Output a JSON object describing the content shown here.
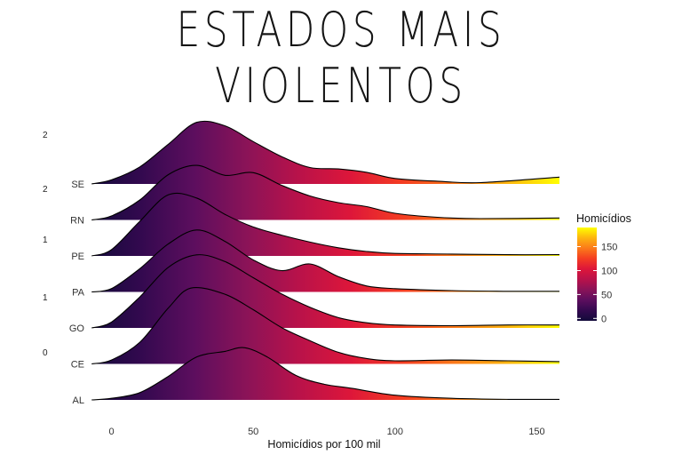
{
  "title": "ESTADOS MAIS VIOLENTOS",
  "colors": {
    "ramp": [
      "#0d0887",
      "#1b0c41",
      "#4a0c6b",
      "#781c6d",
      "#a52c60",
      "#cf4446",
      "#ed6925",
      "#fb9b06",
      "#f7d13d",
      "#fcffa4"
    ],
    "fill_ramp": [
      "#120a3a",
      "#33094f",
      "#5c0e5e",
      "#8a1358",
      "#b8124a",
      "#dd163a",
      "#f43d22",
      "#fb7a1a",
      "#fdb40f",
      "#ffff00"
    ]
  },
  "chart_data": {
    "type": "ridgeline",
    "title": "ESTADOS MAIS VIOLENTOS",
    "xlabel": "Homicídios por 100 mil",
    "ylabel": "",
    "xlim": [
      -8,
      158
    ],
    "x_ticks": [
      0,
      50,
      100,
      150
    ],
    "edge_ticks": [
      "2",
      "2",
      "1",
      "1",
      "0"
    ],
    "categories": [
      "AL",
      "CE",
      "GO",
      "PA",
      "PE",
      "RN",
      "SE"
    ],
    "grid": false,
    "legend": {
      "title": "Homicídios",
      "position": "right",
      "ticks": [
        0,
        50,
        100,
        150
      ],
      "range": [
        -5,
        190
      ]
    },
    "series": [
      {
        "name": "AL",
        "peak": 1.45,
        "x": [
          -7,
          0,
          10,
          20,
          30,
          40,
          47,
          55,
          65,
          75,
          85,
          100,
          120,
          140,
          158
        ],
        "density": [
          0.0,
          0.03,
          0.14,
          0.45,
          0.82,
          0.93,
          1.0,
          0.82,
          0.47,
          0.3,
          0.22,
          0.09,
          0.03,
          0.01,
          0.01
        ]
      },
      {
        "name": "CE",
        "peak": 2.15,
        "x": [
          -7,
          0,
          10,
          20,
          28,
          40,
          50,
          60,
          70,
          80,
          90,
          100,
          120,
          140,
          158
        ],
        "density": [
          0.0,
          0.05,
          0.28,
          0.72,
          0.98,
          0.9,
          0.7,
          0.47,
          0.3,
          0.15,
          0.07,
          0.04,
          0.05,
          0.04,
          0.03
        ]
      },
      {
        "name": "GO",
        "peak": 2.05,
        "x": [
          -7,
          0,
          10,
          20,
          30,
          40,
          50,
          60,
          70,
          80,
          90,
          100,
          120,
          140,
          158
        ],
        "density": [
          0.0,
          0.08,
          0.42,
          0.82,
          0.99,
          0.9,
          0.68,
          0.46,
          0.28,
          0.14,
          0.07,
          0.04,
          0.03,
          0.04,
          0.04
        ]
      },
      {
        "name": "PA",
        "peak": 1.85,
        "x": [
          -7,
          0,
          10,
          20,
          30,
          40,
          50,
          60,
          70,
          80,
          90,
          100,
          120,
          140,
          158
        ],
        "density": [
          0.0,
          0.05,
          0.35,
          0.72,
          0.93,
          0.76,
          0.48,
          0.32,
          0.42,
          0.23,
          0.09,
          0.05,
          0.02,
          0.01,
          0.01
        ]
      },
      {
        "name": "PE",
        "peak": 1.75,
        "x": [
          -7,
          0,
          10,
          20,
          30,
          40,
          50,
          60,
          70,
          80,
          90,
          100,
          120,
          140,
          158
        ],
        "density": [
          0.0,
          0.1,
          0.55,
          0.97,
          0.92,
          0.66,
          0.46,
          0.33,
          0.22,
          0.13,
          0.07,
          0.04,
          0.03,
          0.02,
          0.02
        ]
      },
      {
        "name": "RN",
        "peak": 1.85,
        "x": [
          -7,
          0,
          10,
          20,
          30,
          40,
          50,
          60,
          70,
          80,
          90,
          100,
          115,
          130,
          158
        ],
        "density": [
          0.0,
          0.06,
          0.3,
          0.68,
          0.82,
          0.67,
          0.71,
          0.52,
          0.36,
          0.26,
          0.2,
          0.1,
          0.04,
          0.02,
          0.03
        ]
      },
      {
        "name": "SE",
        "peak": 1.9,
        "x": [
          -7,
          0,
          10,
          20,
          30,
          40,
          50,
          60,
          70,
          80,
          90,
          100,
          115,
          130,
          158
        ],
        "density": [
          0.0,
          0.06,
          0.25,
          0.58,
          0.9,
          0.85,
          0.62,
          0.4,
          0.24,
          0.22,
          0.17,
          0.08,
          0.04,
          0.02,
          0.1
        ]
      }
    ]
  }
}
